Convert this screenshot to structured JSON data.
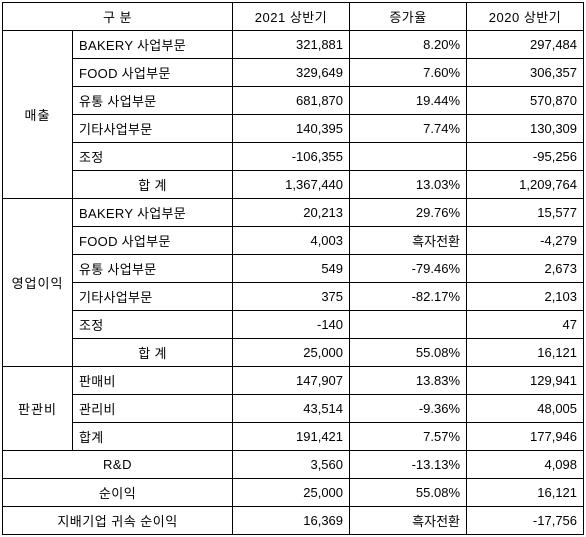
{
  "headers": {
    "category": "구  분",
    "h1": "2021 상반기",
    "rate": "증가율",
    "h0": "2020 상반기"
  },
  "groups": {
    "sales": "매출",
    "op_profit": "영업이익",
    "sga": "판관비",
    "rd": "R&D",
    "net_income": "순이익",
    "parent_income": "지배기업 귀속 순이익"
  },
  "labels": {
    "bakery": "BAKERY 사업부문",
    "food": "FOOD 사업부문",
    "dist": "유통 사업부문",
    "other": "기타사업부문",
    "adj": "조정",
    "total": "합  계",
    "selling": "판매비",
    "admin": "관리비",
    "subtotal": "합계"
  },
  "sales": {
    "bakery": {
      "h1": "321,881",
      "rate": "8.20%",
      "h0": "297,484"
    },
    "food": {
      "h1": "329,649",
      "rate": "7.60%",
      "h0": "306,357"
    },
    "dist": {
      "h1": "681,870",
      "rate": "19.44%",
      "h0": "570,870"
    },
    "other": {
      "h1": "140,395",
      "rate": "7.74%",
      "h0": "130,309"
    },
    "adj": {
      "h1": "-106,355",
      "rate": "",
      "h0": "-95,256"
    },
    "total": {
      "h1": "1,367,440",
      "rate": "13.03%",
      "h0": "1,209,764"
    }
  },
  "op_profit": {
    "bakery": {
      "h1": "20,213",
      "rate": "29.76%",
      "h0": "15,577"
    },
    "food": {
      "h1": "4,003",
      "rate": "흑자전환",
      "h0": "-4,279"
    },
    "dist": {
      "h1": "549",
      "rate": "-79.46%",
      "h0": "2,673"
    },
    "other": {
      "h1": "375",
      "rate": "-82.17%",
      "h0": "2,103"
    },
    "adj": {
      "h1": "-140",
      "rate": "",
      "h0": "47"
    },
    "total": {
      "h1": "25,000",
      "rate": "55.08%",
      "h0": "16,121"
    }
  },
  "sga": {
    "selling": {
      "h1": "147,907",
      "rate": "13.83%",
      "h0": "129,941"
    },
    "admin": {
      "h1": "43,514",
      "rate": "-9.36%",
      "h0": "48,005"
    },
    "subtotal": {
      "h1": "191,421",
      "rate": "7.57%",
      "h0": "177,946"
    }
  },
  "rd": {
    "h1": "3,560",
    "rate": "-13.13%",
    "h0": "4,098"
  },
  "net_income": {
    "h1": "25,000",
    "rate": "55.08%",
    "h0": "16,121"
  },
  "parent_income": {
    "h1": "16,369",
    "rate": "흑자전환",
    "h0": "-17,756"
  }
}
